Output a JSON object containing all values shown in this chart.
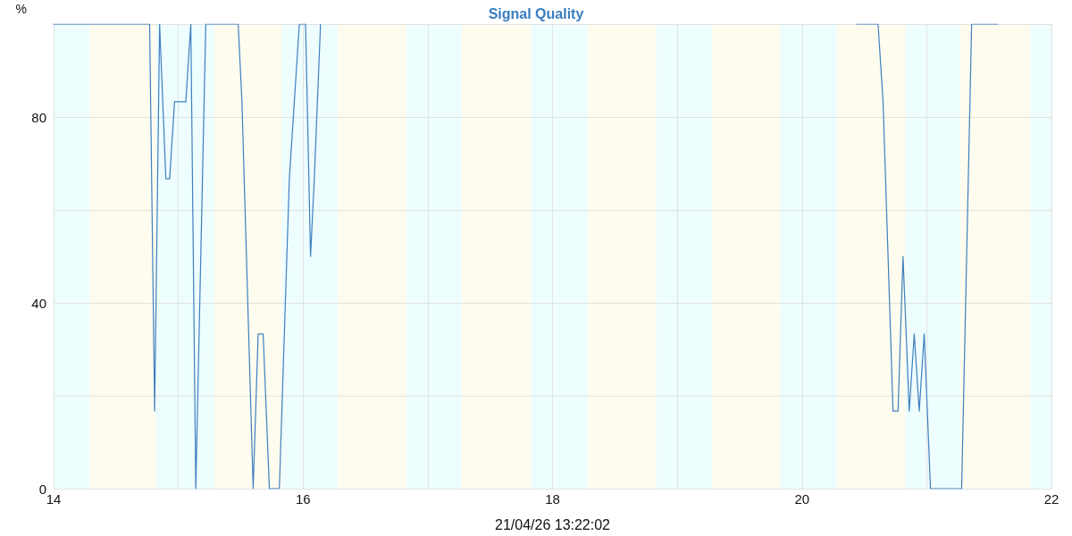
{
  "chart_data": {
    "type": "line",
    "title": "Signal Quality",
    "xlabel": "21/04/26 13:22:02",
    "ylabel": "%",
    "x": [
      14,
      14.77,
      14.81,
      14.85,
      14.9,
      14.93,
      14.97,
      15.06,
      15.1,
      15.14,
      15.22,
      15.48,
      15.51,
      15.6,
      15.64,
      15.68,
      15.73,
      15.81,
      15.89,
      15.97,
      16.02,
      16.06,
      16.09,
      16.14,
      18,
      20.44,
      20.61,
      20.65,
      20.73,
      20.77,
      20.81,
      20.86,
      20.9,
      20.94,
      20.98,
      21.03,
      21.28,
      21.36,
      21.57
    ],
    "series": [
      {
        "color": "#3f7fbf",
        "values": [
          100,
          100,
          16.7,
          100,
          66.7,
          66.7,
          83.3,
          83.3,
          100,
          0,
          100,
          100,
          83.3,
          0,
          33.3,
          33.3,
          0,
          0,
          66.7,
          100,
          100,
          50,
          66.7,
          100,
          null,
          100,
          100,
          83.3,
          16.7,
          16.7,
          50,
          16.7,
          33.3,
          16.7,
          33.3,
          0,
          0,
          100,
          100
        ]
      }
    ],
    "xlim": [
      14,
      22
    ],
    "xticks": [
      14,
      {
        "value": 15,
        "label": null
      },
      16,
      {
        "value": 17,
        "label": null
      },
      18,
      {
        "value": 19,
        "label": null
      },
      20,
      {
        "value": 21,
        "label": null
      },
      22
    ],
    "ylim": [
      0,
      100
    ],
    "yticks": [
      0,
      {
        "value": 20,
        "label": null
      },
      40,
      {
        "value": 60,
        "label": null
      },
      80,
      {
        "value": 100,
        "label": null
      }
    ],
    "grid": true,
    "marker": "none",
    "line_style": "solid",
    "bands": [
      {
        "axis": "x",
        "from": 14,
        "to": 14.29,
        "color": "#eefdfd"
      },
      {
        "axis": "x",
        "from": 14.29,
        "to": 14.82,
        "color": "#fdfcee"
      },
      {
        "axis": "x",
        "from": 14.82,
        "to": 15.29,
        "color": "#eefdfd"
      },
      {
        "axis": "x",
        "from": 15.29,
        "to": 15.83,
        "color": "#fdfcee"
      },
      {
        "axis": "x",
        "from": 15.83,
        "to": 16.28,
        "color": "#eefdfd"
      },
      {
        "axis": "x",
        "from": 16.28,
        "to": 16.83,
        "color": "#fdfcee"
      },
      {
        "axis": "x",
        "from": 16.83,
        "to": 17.27,
        "color": "#eefdfd"
      },
      {
        "axis": "x",
        "from": 17.27,
        "to": 17.83,
        "color": "#fdfcee"
      },
      {
        "axis": "x",
        "from": 17.83,
        "to": 18.28,
        "color": "#eefdfd"
      },
      {
        "axis": "x",
        "from": 18.28,
        "to": 18.83,
        "color": "#fdfcee"
      },
      {
        "axis": "x",
        "from": 18.83,
        "to": 19.28,
        "color": "#eefdfd"
      },
      {
        "axis": "x",
        "from": 19.28,
        "to": 19.83,
        "color": "#fdfcee"
      },
      {
        "axis": "x",
        "from": 19.83,
        "to": 20.28,
        "color": "#eefdfd"
      },
      {
        "axis": "x",
        "from": 20.28,
        "to": 20.83,
        "color": "#fdfcee"
      },
      {
        "axis": "x",
        "from": 20.83,
        "to": 21.27,
        "color": "#eefdfd"
      },
      {
        "axis": "x",
        "from": 21.27,
        "to": 21.83,
        "color": "#fdfcee"
      },
      {
        "axis": "x",
        "from": 21.83,
        "to": 22,
        "color": "#eefdfd"
      }
    ]
  }
}
